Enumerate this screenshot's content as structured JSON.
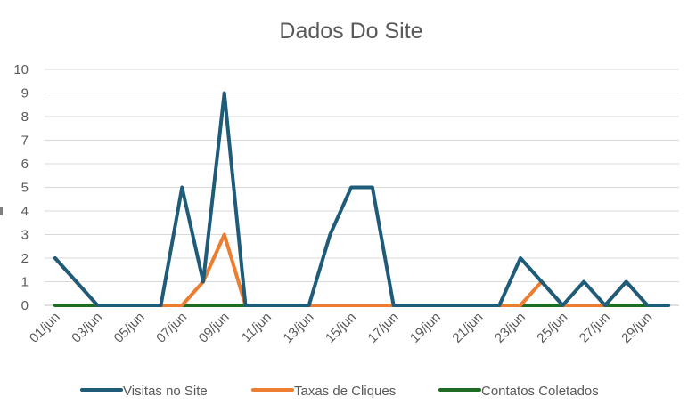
{
  "chart_data": {
    "type": "line",
    "title": "Dados Do Site",
    "xlabel": "",
    "ylabel": "",
    "ylim": [
      0,
      10
    ],
    "yticks": [
      0,
      1,
      2,
      3,
      4,
      5,
      6,
      7,
      8,
      9,
      10
    ],
    "grid": true,
    "legend_position": "bottom",
    "categories": [
      "01/jun",
      "02/jun",
      "03/jun",
      "04/jun",
      "05/jun",
      "06/jun",
      "07/jun",
      "08/jun",
      "09/jun",
      "10/jun",
      "11/jun",
      "12/jun",
      "13/jun",
      "14/jun",
      "15/jun",
      "16/jun",
      "17/jun",
      "18/jun",
      "19/jun",
      "20/jun",
      "21/jun",
      "22/jun",
      "23/jun",
      "24/jun",
      "25/jun",
      "26/jun",
      "27/jun",
      "28/jun",
      "29/jun",
      "30/jun"
    ],
    "tick_labels": [
      "01/jun",
      "03/jun",
      "05/jun",
      "07/jun",
      "09/jun",
      "11/jun",
      "13/jun",
      "15/jun",
      "17/jun",
      "19/jun",
      "21/jun",
      "23/jun",
      "25/jun",
      "27/jun",
      "29/jun"
    ],
    "series": [
      {
        "name": "Visitas no Site",
        "color": "#1f5c7a",
        "values": [
          2,
          1,
          0,
          0,
          0,
          0,
          5,
          1,
          9,
          0,
          0,
          0,
          0,
          3,
          5,
          5,
          0,
          0,
          0,
          0,
          0,
          0,
          2,
          1,
          0,
          1,
          0,
          1,
          0,
          0
        ]
      },
      {
        "name": "Taxas de Cliques",
        "color": "#ed7d31",
        "values": [
          2,
          1,
          0,
          0,
          0,
          0,
          0,
          1,
          3,
          0,
          0,
          0,
          0,
          0,
          0,
          0,
          0,
          0,
          0,
          0,
          0,
          0,
          0,
          1,
          0,
          0,
          0,
          1,
          0,
          0
        ]
      },
      {
        "name": "Contatos Coletados",
        "color": "#1e6b24",
        "values": [
          0,
          0,
          0,
          0,
          0,
          0,
          0,
          0,
          0,
          0,
          0,
          0,
          0,
          0,
          0,
          0,
          0,
          0,
          0,
          0,
          0,
          0,
          0,
          0,
          0,
          0,
          0,
          0,
          0,
          0
        ]
      }
    ]
  }
}
